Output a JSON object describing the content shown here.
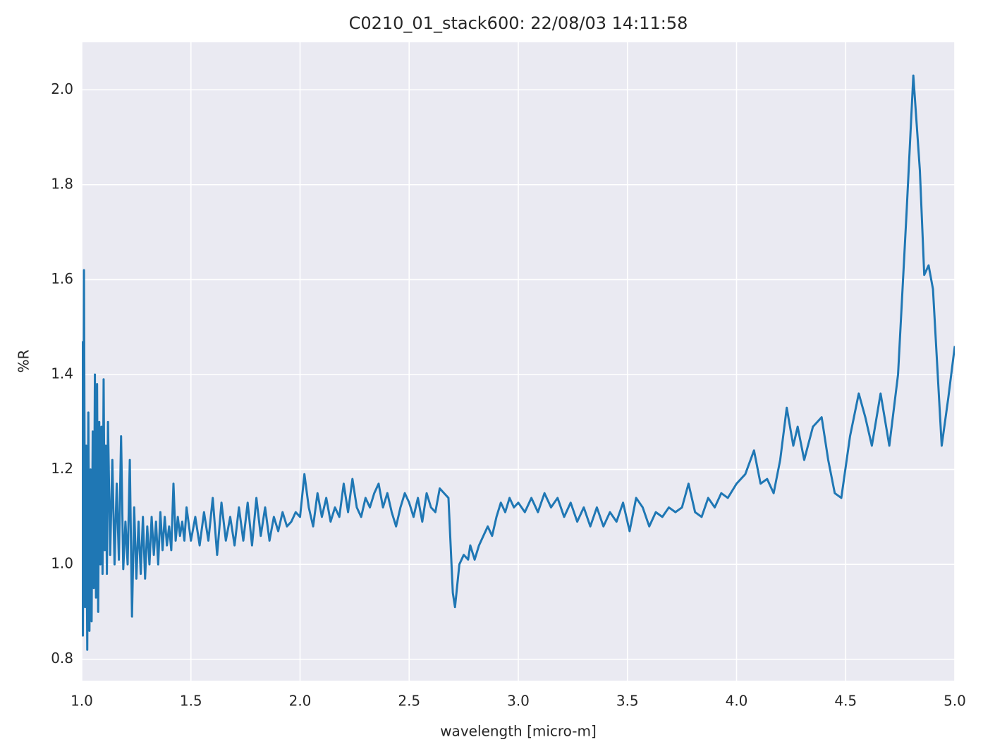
{
  "chart_data": {
    "type": "line",
    "title": "C0210_01_stack600:  22/08/03 14:11:58",
    "xlabel": "wavelength [micro-m]",
    "ylabel": "%R",
    "xlim": [
      1,
      5
    ],
    "ylim": [
      0.755,
      2.1
    ],
    "xticks": [
      {
        "value": 1,
        "label": "1.0"
      },
      1.5,
      {
        "value": 2,
        "label": "2.0"
      },
      2.5,
      {
        "value": 3,
        "label": "3.0"
      },
      3.5,
      {
        "value": 4,
        "label": "4.0"
      },
      4.5,
      {
        "value": 5,
        "label": "5.0"
      }
    ],
    "yticks": [
      0.8,
      {
        "value": 1,
        "label": "1.0"
      },
      1.2,
      1.4,
      1.6,
      1.8,
      {
        "value": 2,
        "label": "2.0"
      }
    ],
    "grid": true,
    "series": [
      {
        "color": "#1f77b4",
        "x": [
          1.0,
          1.005,
          1.01,
          1.015,
          1.02,
          1.025,
          1.03,
          1.035,
          1.04,
          1.045,
          1.05,
          1.055,
          1.06,
          1.065,
          1.07,
          1.075,
          1.08,
          1.085,
          1.09,
          1.095,
          1.1,
          1.105,
          1.11,
          1.115,
          1.12,
          1.13,
          1.14,
          1.15,
          1.16,
          1.17,
          1.18,
          1.19,
          1.2,
          1.21,
          1.22,
          1.23,
          1.24,
          1.25,
          1.26,
          1.27,
          1.28,
          1.29,
          1.3,
          1.31,
          1.32,
          1.33,
          1.34,
          1.35,
          1.36,
          1.37,
          1.38,
          1.39,
          1.4,
          1.41,
          1.42,
          1.43,
          1.44,
          1.45,
          1.46,
          1.47,
          1.48,
          1.5,
          1.52,
          1.54,
          1.56,
          1.58,
          1.6,
          1.62,
          1.64,
          1.66,
          1.68,
          1.7,
          1.72,
          1.74,
          1.76,
          1.78,
          1.8,
          1.82,
          1.84,
          1.86,
          1.88,
          1.9,
          1.92,
          1.94,
          1.96,
          1.98,
          2.0,
          2.02,
          2.04,
          2.06,
          2.08,
          2.1,
          2.12,
          2.14,
          2.16,
          2.18,
          2.2,
          2.22,
          2.24,
          2.26,
          2.28,
          2.3,
          2.32,
          2.34,
          2.36,
          2.38,
          2.4,
          2.42,
          2.44,
          2.46,
          2.48,
          2.5,
          2.52,
          2.54,
          2.56,
          2.58,
          2.6,
          2.62,
          2.64,
          2.66,
          2.68,
          2.7,
          2.71,
          2.73,
          2.75,
          2.77,
          2.78,
          2.8,
          2.82,
          2.84,
          2.86,
          2.88,
          2.9,
          2.92,
          2.94,
          2.96,
          2.98,
          3.0,
          3.03,
          3.06,
          3.09,
          3.12,
          3.15,
          3.18,
          3.21,
          3.24,
          3.27,
          3.3,
          3.33,
          3.36,
          3.39,
          3.42,
          3.45,
          3.48,
          3.51,
          3.54,
          3.57,
          3.6,
          3.63,
          3.66,
          3.69,
          3.72,
          3.75,
          3.78,
          3.81,
          3.84,
          3.87,
          3.9,
          3.93,
          3.96,
          4.0,
          4.04,
          4.08,
          4.11,
          4.14,
          4.17,
          4.2,
          4.23,
          4.26,
          4.28,
          4.31,
          4.35,
          4.39,
          4.42,
          4.45,
          4.48,
          4.52,
          4.56,
          4.59,
          4.62,
          4.66,
          4.7,
          4.74,
          4.78,
          4.81,
          4.84,
          4.86,
          4.88,
          4.9,
          4.94,
          4.97,
          5.0
        ],
        "values": [
          1.47,
          0.85,
          1.62,
          0.91,
          1.25,
          0.82,
          1.32,
          0.86,
          1.2,
          0.88,
          1.28,
          0.95,
          1.4,
          0.93,
          1.38,
          0.9,
          1.3,
          1.0,
          1.29,
          0.98,
          1.39,
          1.03,
          1.25,
          0.98,
          1.3,
          1.02,
          1.22,
          1.0,
          1.17,
          1.01,
          1.27,
          0.99,
          1.09,
          1.0,
          1.22,
          0.89,
          1.12,
          0.97,
          1.09,
          0.98,
          1.1,
          0.97,
          1.08,
          1.0,
          1.1,
          1.02,
          1.09,
          1.0,
          1.11,
          1.03,
          1.1,
          1.04,
          1.08,
          1.03,
          1.17,
          1.05,
          1.1,
          1.06,
          1.09,
          1.05,
          1.12,
          1.05,
          1.1,
          1.04,
          1.11,
          1.05,
          1.14,
          1.02,
          1.13,
          1.05,
          1.1,
          1.04,
          1.12,
          1.05,
          1.13,
          1.04,
          1.14,
          1.06,
          1.12,
          1.05,
          1.1,
          1.07,
          1.11,
          1.08,
          1.09,
          1.11,
          1.1,
          1.19,
          1.12,
          1.08,
          1.15,
          1.1,
          1.14,
          1.09,
          1.12,
          1.1,
          1.17,
          1.11,
          1.18,
          1.12,
          1.1,
          1.14,
          1.12,
          1.15,
          1.17,
          1.12,
          1.15,
          1.11,
          1.08,
          1.12,
          1.15,
          1.13,
          1.1,
          1.14,
          1.09,
          1.15,
          1.12,
          1.11,
          1.16,
          1.15,
          1.14,
          0.94,
          0.91,
          1.0,
          1.02,
          1.01,
          1.04,
          1.01,
          1.04,
          1.06,
          1.08,
          1.06,
          1.1,
          1.13,
          1.11,
          1.14,
          1.12,
          1.13,
          1.11,
          1.14,
          1.11,
          1.15,
          1.12,
          1.14,
          1.1,
          1.13,
          1.09,
          1.12,
          1.08,
          1.12,
          1.08,
          1.11,
          1.09,
          1.13,
          1.07,
          1.14,
          1.12,
          1.08,
          1.11,
          1.1,
          1.12,
          1.11,
          1.12,
          1.17,
          1.11,
          1.1,
          1.14,
          1.12,
          1.15,
          1.14,
          1.17,
          1.19,
          1.24,
          1.17,
          1.18,
          1.15,
          1.22,
          1.33,
          1.25,
          1.29,
          1.22,
          1.29,
          1.31,
          1.22,
          1.15,
          1.14,
          1.27,
          1.36,
          1.31,
          1.25,
          1.36,
          1.25,
          1.4,
          1.75,
          2.03,
          1.83,
          1.61,
          1.63,
          1.58,
          1.25,
          1.35,
          1.46
        ]
      }
    ]
  }
}
